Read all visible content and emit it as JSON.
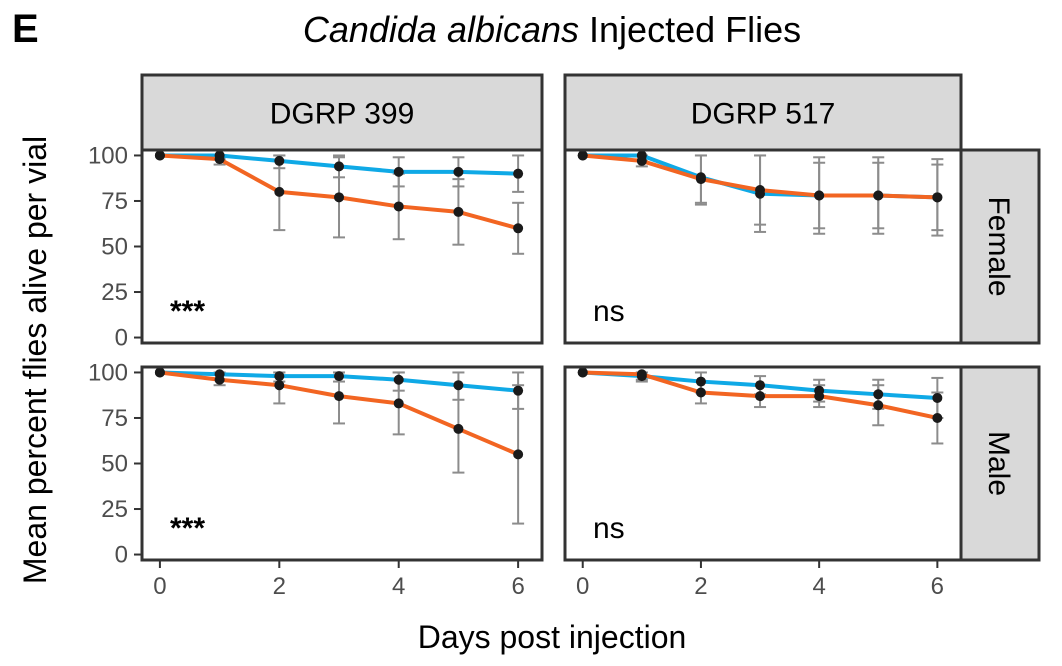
{
  "panel_label": "E",
  "title": {
    "italic_part": "Candida albicans",
    "rest": " Injected Flies"
  },
  "chart_data": {
    "type": "line",
    "title": "Candida albicans Injected Flies",
    "xlabel": "Days post injection",
    "ylabel": "Mean percent flies alive per vial",
    "x": [
      0,
      1,
      2,
      3,
      4,
      5,
      6
    ],
    "xlim": [
      -0.3,
      6.4
    ],
    "ylim": [
      -3,
      103
    ],
    "xticks": [
      0,
      2,
      4,
      6
    ],
    "yticks": [
      0,
      25,
      50,
      75,
      100
    ],
    "grid": false,
    "legend": "none",
    "columns": [
      "DGRP 399",
      "DGRP 517"
    ],
    "rows": [
      "Female",
      "Male"
    ],
    "series_colors": [
      "#0fa9e6",
      "#f26522"
    ],
    "errorbar_color": "#8c8c8c",
    "point_color": "#1a1a1a",
    "facets": [
      {
        "column": "DGRP 399",
        "row": "Female",
        "annotation": "***",
        "series": [
          {
            "values": [
              100,
              100,
              97,
              94,
              91,
              91,
              90
            ],
            "err": [
              0,
              2,
              4,
              6,
              8,
              8,
              10
            ]
          },
          {
            "values": [
              100,
              98,
              80,
              77,
              72,
              69,
              60
            ],
            "err": [
              0,
              3,
              21,
              22,
              18,
              18,
              14
            ]
          }
        ]
      },
      {
        "column": "DGRP 517",
        "row": "Female",
        "annotation": "ns",
        "series": [
          {
            "values": [
              100,
              100,
              88,
              79,
              78,
              78,
              77
            ],
            "err": [
              0,
              3,
              14,
              21,
              21,
              21,
              21
            ]
          },
          {
            "values": [
              100,
              97,
              87,
              81,
              78,
              78,
              77
            ],
            "err": [
              0,
              3,
              14,
              19,
              18,
              18,
              18
            ]
          }
        ]
      },
      {
        "column": "DGRP 399",
        "row": "Male",
        "annotation": "***",
        "series": [
          {
            "values": [
              100,
              99,
              98,
              98,
              96,
              93,
              90
            ],
            "err": [
              0,
              3,
              3,
              3,
              6,
              8,
              10
            ]
          },
          {
            "values": [
              100,
              96,
              93,
              87,
              83,
              69,
              55
            ],
            "err": [
              0,
              3,
              10,
              15,
              17,
              24,
              38
            ]
          }
        ]
      },
      {
        "column": "DGRP 517",
        "row": "Male",
        "annotation": "ns",
        "series": [
          {
            "values": [
              100,
              98,
              95,
              93,
              90,
              88,
              86
            ],
            "err": [
              0,
              3,
              6,
              5,
              6,
              8,
              11
            ]
          },
          {
            "values": [
              100,
              99,
              89,
              87,
              87,
              82,
              75
            ],
            "err": [
              0,
              3,
              6,
              6,
              6,
              11,
              14
            ]
          }
        ]
      }
    ]
  }
}
